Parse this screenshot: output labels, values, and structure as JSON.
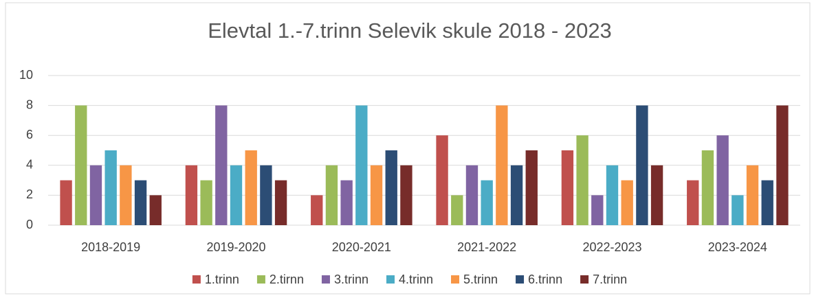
{
  "chart_data": {
    "type": "bar",
    "title": "Elevtal 1.-7.trinn Selevik skule 2018 - 2023",
    "categories": [
      "2018-2019",
      "2019-2020",
      "2020-2021",
      "2021-2022",
      "2022-2023",
      "2023-2024"
    ],
    "series": [
      {
        "name": "1.trinn",
        "color": "#c0504d",
        "values": [
          3,
          4,
          2,
          6,
          5,
          3
        ]
      },
      {
        "name": "2.tirnn",
        "color": "#9bbb59",
        "values": [
          8,
          3,
          4,
          2,
          6,
          5
        ]
      },
      {
        "name": "3.trinn",
        "color": "#8064a2",
        "values": [
          4,
          8,
          3,
          4,
          2,
          6
        ]
      },
      {
        "name": "4.trinn",
        "color": "#4bacc6",
        "values": [
          5,
          4,
          8,
          3,
          4,
          2
        ]
      },
      {
        "name": "5.trinn",
        "color": "#f79646",
        "values": [
          4,
          5,
          4,
          8,
          3,
          4
        ]
      },
      {
        "name": "6.trinn",
        "color": "#2c4d75",
        "values": [
          3,
          4,
          5,
          4,
          8,
          3
        ]
      },
      {
        "name": "7.trinn",
        "color": "#772c2a",
        "values": [
          2,
          3,
          4,
          5,
          4,
          8
        ]
      }
    ],
    "ylim": [
      0,
      10
    ],
    "yticks": [
      0,
      2,
      4,
      6,
      8,
      10
    ],
    "grid": true,
    "legend": "bottom"
  }
}
